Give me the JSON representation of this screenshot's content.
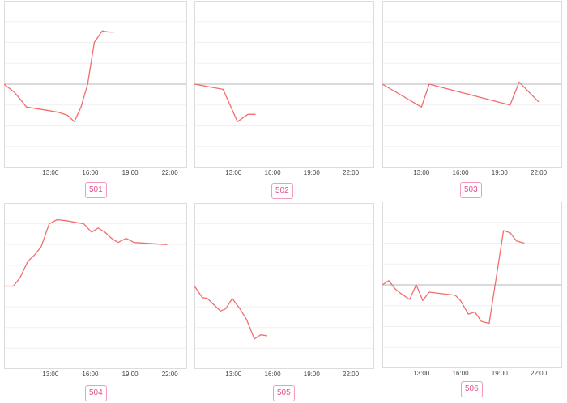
{
  "colors": {
    "series": "#f26d6d",
    "baseline": "#b4b4b4",
    "grid": "#f0f0f0",
    "badge_border": "#f49ac0",
    "badge_text": "#e0508e"
  },
  "panels": [
    {
      "id": "501",
      "label": "501"
    },
    {
      "id": "502",
      "label": "502"
    },
    {
      "id": "503",
      "label": "503"
    },
    {
      "id": "504",
      "label": "504"
    },
    {
      "id": "505",
      "label": "505"
    },
    {
      "id": "506",
      "label": "506"
    }
  ],
  "chart_data": [
    {
      "type": "line",
      "title": "",
      "xlabel": "",
      "ylabel": "",
      "x_ticks": [
        "13:00",
        "16:00",
        "19:00",
        "22:00"
      ],
      "xlim": [
        9.5,
        23.3
      ],
      "ylim": [
        -4,
        4
      ],
      "baseline": 0,
      "grid": true,
      "series": [
        {
          "x": [
            9.5,
            10.3,
            11.2,
            12.7,
            13.6,
            14.3,
            14.8,
            15.3,
            15.8,
            16.3,
            16.9,
            17.4,
            17.8
          ],
          "y": [
            0,
            -0.4,
            -1.1,
            -1.25,
            -1.35,
            -1.5,
            -1.8,
            -1.1,
            0,
            2.0,
            2.55,
            2.5,
            2.5
          ]
        }
      ]
    },
    {
      "type": "line",
      "title": "",
      "xlabel": "",
      "ylabel": "",
      "x_ticks": [
        "13:00",
        "16:00",
        "19:00",
        "22:00"
      ],
      "xlim": [
        10,
        23.8
      ],
      "ylim": [
        -4,
        4
      ],
      "baseline": 0,
      "grid": true,
      "series": [
        {
          "x": [
            10,
            12.2,
            13.3,
            14.1,
            14.7
          ],
          "y": [
            0,
            -0.25,
            -1.8,
            -1.45,
            -1.45
          ]
        }
      ]
    },
    {
      "type": "line",
      "title": "",
      "xlabel": "",
      "ylabel": "",
      "x_ticks": [
        "13:00",
        "16:00",
        "19:00",
        "22:00"
      ],
      "xlim": [
        10,
        23.8
      ],
      "ylim": [
        -4,
        4
      ],
      "baseline": 0,
      "grid": true,
      "series": [
        {
          "x": [
            10,
            13.0,
            13.6,
            19.8,
            20.5,
            22.0
          ],
          "y": [
            0,
            -1.1,
            0,
            -1.0,
            0.1,
            -0.85
          ]
        }
      ]
    },
    {
      "type": "line",
      "title": "",
      "xlabel": "",
      "ylabel": "",
      "x_ticks": [
        "13:00",
        "16:00",
        "19:00",
        "22:00"
      ],
      "xlim": [
        9.5,
        23.3
      ],
      "ylim": [
        -4,
        4
      ],
      "baseline": 0,
      "grid": true,
      "series": [
        {
          "x": [
            9.5,
            10.2,
            10.7,
            11.3,
            11.8,
            12.3,
            12.9,
            13.5,
            14.2,
            15.5,
            16.1,
            16.6,
            17.1,
            17.6,
            18.1,
            18.7,
            19.3,
            21.8
          ],
          "y": [
            0,
            0,
            0.4,
            1.2,
            1.5,
            1.9,
            3.0,
            3.2,
            3.15,
            3.0,
            2.6,
            2.8,
            2.6,
            2.3,
            2.1,
            2.3,
            2.1,
            2.0
          ]
        }
      ]
    },
    {
      "type": "line",
      "title": "",
      "xlabel": "",
      "ylabel": "",
      "x_ticks": [
        "13:00",
        "16:00",
        "19:00",
        "22:00"
      ],
      "xlim": [
        10,
        23.8
      ],
      "ylim": [
        -4,
        4
      ],
      "baseline": 0,
      "grid": true,
      "series": [
        {
          "x": [
            10,
            10.6,
            11.0,
            11.5,
            12.0,
            12.4,
            12.9,
            13.5,
            14.0,
            14.6,
            15.1,
            15.6
          ],
          "y": [
            0,
            -0.55,
            -0.6,
            -0.9,
            -1.2,
            -1.1,
            -0.6,
            -1.1,
            -1.6,
            -2.55,
            -2.35,
            -2.4
          ]
        }
      ]
    },
    {
      "type": "line",
      "title": "",
      "xlabel": "",
      "ylabel": "",
      "x_ticks": [
        "13:00",
        "16:00",
        "19:00",
        "22:00"
      ],
      "xlim": [
        10,
        23.8
      ],
      "ylim": [
        -4,
        4
      ],
      "baseline": 0,
      "grid": true,
      "series": [
        {
          "x": [
            10,
            10.5,
            11.0,
            11.5,
            12.1,
            12.6,
            13.1,
            13.6,
            15.6,
            16.0,
            16.6,
            17.1,
            17.6,
            18.2,
            19.3,
            19.8,
            20.3,
            20.9
          ],
          "y": [
            0,
            0.2,
            -0.2,
            -0.45,
            -0.7,
            0,
            -0.75,
            -0.35,
            -0.5,
            -0.75,
            -1.4,
            -1.3,
            -1.75,
            -1.85,
            2.6,
            2.5,
            2.1,
            2.0
          ]
        }
      ]
    }
  ]
}
